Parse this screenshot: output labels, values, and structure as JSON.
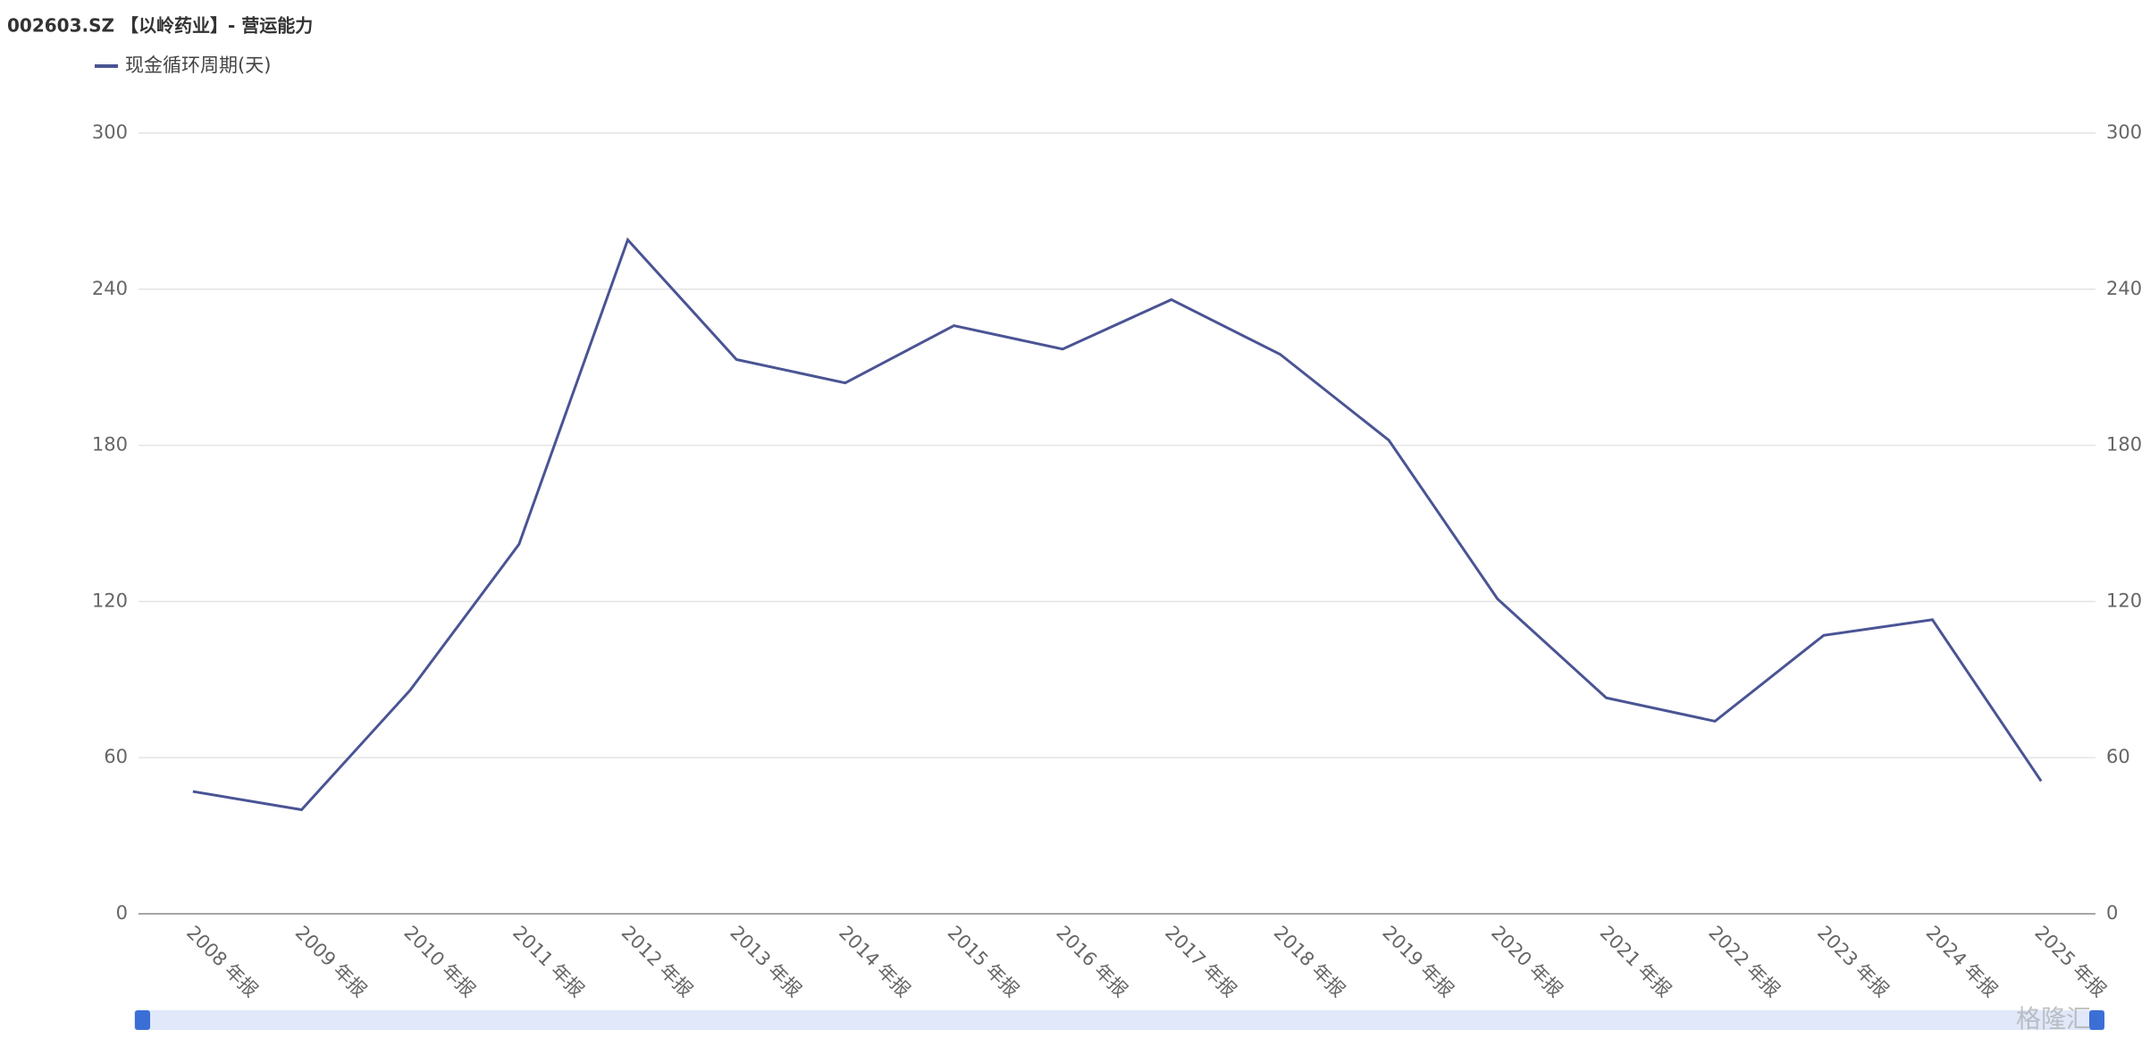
{
  "chart_data": {
    "type": "line",
    "title": "002603.SZ 【以岭药业】- 营运能力",
    "categories": [
      "2008 年报",
      "2009 年报",
      "2010 年报",
      "2011 年报",
      "2012 年报",
      "2013 年报",
      "2014 年报",
      "2015 年报",
      "2016 年报",
      "2017 年报",
      "2018 年报",
      "2019 年报",
      "2020 年报",
      "2021 年报",
      "2022 年报",
      "2023 年报",
      "2024 年报",
      "2025 年报"
    ],
    "series": [
      {
        "name": "现金循环周期(天)",
        "color": "#4a5494",
        "values": [
          47,
          40,
          86,
          142,
          259,
          213,
          204,
          226,
          217,
          236,
          215,
          182,
          121,
          83,
          74,
          107,
          113,
          51
        ]
      }
    ],
    "ylim": [
      0,
      300
    ],
    "yticks": [
      0,
      60,
      120,
      180,
      240,
      300
    ],
    "y2lim": [
      0,
      300
    ],
    "y2ticks": [
      0,
      60,
      120,
      180,
      240,
      300
    ],
    "grid": true,
    "legend": "top-left",
    "watermark": "格隆汇"
  }
}
